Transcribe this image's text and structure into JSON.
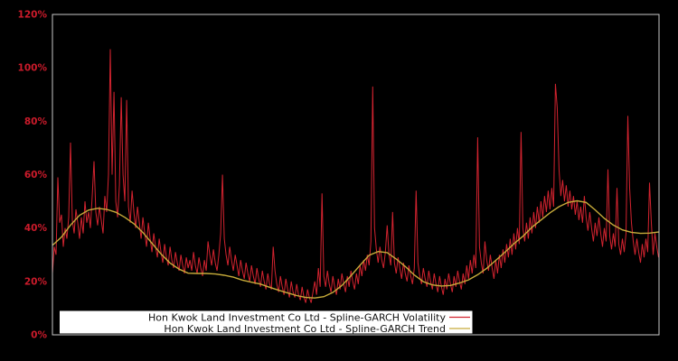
{
  "chart": {
    "background": "#000000",
    "plot_border_color": "#c8c8c8",
    "axis_label_color": "#cc1b2b",
    "legend": {
      "background": "#ffffff"
    }
  },
  "chart_data": {
    "type": "line",
    "title": "",
    "xlabel": "",
    "ylabel": "",
    "ylim": [
      0,
      120
    ],
    "y_unit": "%",
    "grid": false,
    "x_tick_labels_visible": false,
    "legend_position": "bottom-center-inside",
    "y_ticks": [
      {
        "label": "0%",
        "value": 0
      },
      {
        "label": "20%",
        "value": 20
      },
      {
        "label": "40%",
        "value": 40
      },
      {
        "label": "60%",
        "value": 60
      },
      {
        "label": "80%",
        "value": 80
      },
      {
        "label": "100%",
        "value": 100
      },
      {
        "label": "120%",
        "value": 120
      }
    ],
    "series": [
      {
        "name": "Hon Kwok Land Investment Co Ltd - Spline-GARCH Volatility",
        "color": "#d2232f",
        "stroke_width": 1,
        "values_pct": [
          23,
          33,
          30,
          59,
          42,
          45,
          33,
          40,
          36,
          44,
          72,
          43,
          38,
          47,
          42,
          36,
          44,
          38,
          50,
          42,
          46,
          40,
          52,
          65,
          46,
          41,
          48,
          43,
          38,
          52,
          46,
          60,
          107,
          60,
          91,
          50,
          44,
          56,
          89,
          60,
          50,
          88,
          48,
          42,
          54,
          46,
          40,
          48,
          42,
          36,
          44,
          38,
          33,
          42,
          36,
          31,
          38,
          33,
          29,
          36,
          31,
          27,
          34,
          29,
          26,
          33,
          28,
          25,
          31,
          27,
          24,
          30,
          26,
          23,
          29,
          25,
          28,
          24,
          31,
          26,
          23,
          29,
          25,
          22,
          28,
          24,
          35,
          30,
          26,
          32,
          27,
          24,
          30,
          38,
          60,
          36,
          30,
          26,
          33,
          28,
          24,
          30,
          26,
          22,
          28,
          24,
          21,
          27,
          23,
          20,
          26,
          22,
          19,
          25,
          21,
          18,
          24,
          20,
          17,
          23,
          19,
          17,
          33,
          24,
          19,
          16,
          22,
          18,
          15,
          21,
          17,
          14,
          20,
          16,
          14,
          19,
          15,
          13,
          18,
          14,
          12,
          17,
          14,
          12,
          16,
          20,
          15,
          25,
          18,
          53,
          22,
          18,
          24,
          19,
          16,
          22,
          18,
          15,
          21,
          17,
          23,
          19,
          16,
          22,
          18,
          24,
          20,
          17,
          23,
          19,
          26,
          22,
          28,
          24,
          30,
          26,
          35,
          93,
          40,
          32,
          27,
          33,
          28,
          25,
          31,
          41,
          30,
          26,
          46,
          27,
          23,
          29,
          25,
          21,
          27,
          23,
          20,
          26,
          22,
          19,
          25,
          54,
          27,
          22,
          19,
          25,
          21,
          18,
          24,
          20,
          17,
          23,
          19,
          16,
          22,
          18,
          15,
          21,
          17,
          23,
          19,
          16,
          22,
          18,
          24,
          20,
          17,
          23,
          19,
          26,
          21,
          28,
          23,
          30,
          25,
          74,
          33,
          27,
          23,
          35,
          28,
          24,
          30,
          25,
          21,
          28,
          23,
          30,
          25,
          32,
          27,
          34,
          29,
          36,
          30,
          38,
          32,
          40,
          34,
          76,
          40,
          35,
          42,
          36,
          44,
          38,
          46,
          40,
          48,
          42,
          50,
          44,
          52,
          46,
          54,
          47,
          55,
          48,
          94,
          85,
          62,
          52,
          58,
          50,
          56,
          48,
          54,
          47,
          52,
          45,
          50,
          43,
          48,
          42,
          52,
          44,
          39,
          46,
          40,
          35,
          42,
          37,
          44,
          38,
          33,
          40,
          35,
          62,
          37,
          32,
          38,
          33,
          55,
          34,
          30,
          36,
          31,
          38,
          82,
          55,
          42,
          35,
          30,
          36,
          31,
          27,
          34,
          29,
          36,
          31,
          57,
          42,
          30,
          38,
          33,
          29
        ]
      },
      {
        "name": "Hon Kwok Land Investment Co Ltd - Spline-GARCH Trend",
        "color": "#c7ab3a",
        "stroke_width": 1.4,
        "values_pct": [
          33.5,
          36.6,
          41.1,
          44.8,
          46.7,
          47.4,
          47.0,
          45.9,
          44.0,
          41.6,
          38.3,
          34.3,
          30.3,
          26.9,
          24.6,
          23.1,
          23.0,
          23.0,
          22.8,
          22.3,
          21.6,
          20.5,
          19.7,
          19.0,
          17.8,
          16.7,
          15.7,
          14.7,
          14.0,
          13.8,
          14.3,
          15.9,
          18.5,
          22.1,
          26.1,
          29.8,
          31.2,
          30.8,
          28.4,
          25.6,
          22.4,
          19.9,
          18.7,
          18.3,
          18.5,
          19.4,
          20.6,
          22.5,
          24.9,
          27.9,
          30.9,
          34.1,
          36.9,
          40.3,
          43.0,
          45.7,
          48.0,
          49.6,
          50.2,
          49.6,
          46.8,
          43.6,
          41.1,
          39.3,
          38.4,
          38.0,
          38.1,
          38.5
        ]
      }
    ]
  }
}
